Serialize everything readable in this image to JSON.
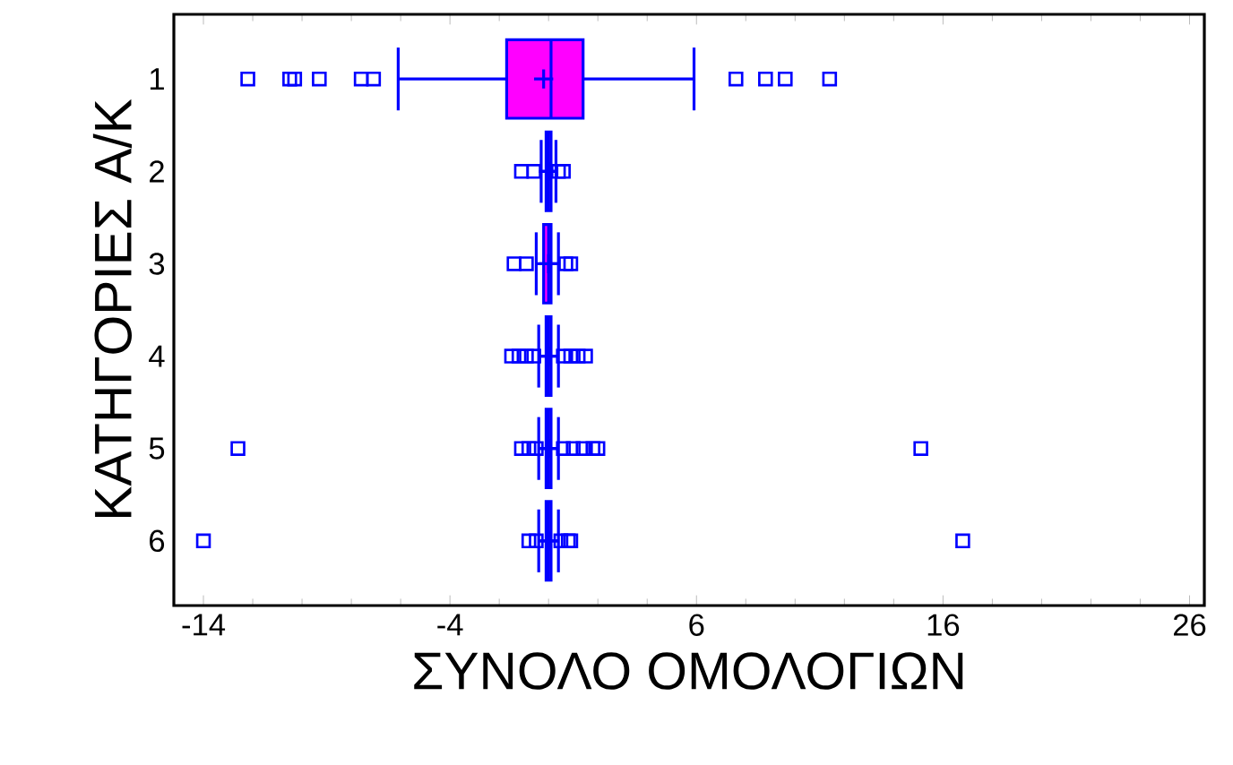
{
  "chart_data": {
    "type": "box",
    "orientation": "horizontal",
    "xlabel": "ΣΥΝΟΛΟ ΟΜΟΛΟΓΙΩΝ",
    "ylabel": "ΚΑΤΗΓΟΡΙΕΣ Α/Κ",
    "categories": [
      "1",
      "2",
      "3",
      "4",
      "5",
      "6"
    ],
    "color": "#ff00ff",
    "xlim": [
      -15.2,
      26.6
    ],
    "xticks": [
      -14,
      -4,
      6,
      16,
      26
    ],
    "boxes": [
      {
        "low": -6.1,
        "q1": -1.7,
        "median": 0.1,
        "q3": 1.4,
        "high": 5.9,
        "mean": -0.2,
        "outliers": [
          -12.2,
          -10.5,
          -10.3,
          -9.3,
          -7.6,
          -7.1,
          7.6,
          8.8,
          9.6,
          11.4
        ]
      },
      {
        "low": -0.3,
        "q1": -0.1,
        "median": 0,
        "q3": 0.1,
        "high": 0.3,
        "mean": 0,
        "outliers": [
          -1.1,
          -0.6,
          0.4,
          0.6
        ]
      },
      {
        "low": -0.5,
        "q1": -0.2,
        "median": 0,
        "q3": 0.1,
        "high": 0.4,
        "mean": 0,
        "outliers": [
          -1.4,
          -0.9,
          0.7,
          0.9
        ]
      },
      {
        "low": -0.4,
        "q1": -0.1,
        "median": 0,
        "q3": 0.1,
        "high": 0.4,
        "mean": 0,
        "outliers": [
          -1.5,
          -1.2,
          -0.9,
          -0.6,
          0.6,
          0.9,
          1.2,
          1.5
        ]
      },
      {
        "low": -0.4,
        "q1": -0.1,
        "median": 0,
        "q3": 0.1,
        "high": 0.4,
        "mean": 0,
        "outliers": [
          -12.6,
          -1.1,
          -0.8,
          -0.5,
          0.6,
          1.0,
          1.4,
          1.8,
          2.0,
          15.1
        ]
      },
      {
        "low": -0.4,
        "q1": -0.1,
        "median": 0,
        "q3": 0.1,
        "high": 0.4,
        "mean": 0,
        "outliers": [
          -14.0,
          -0.8,
          -0.5,
          0.5,
          0.8,
          0.9,
          16.8
        ]
      }
    ]
  }
}
